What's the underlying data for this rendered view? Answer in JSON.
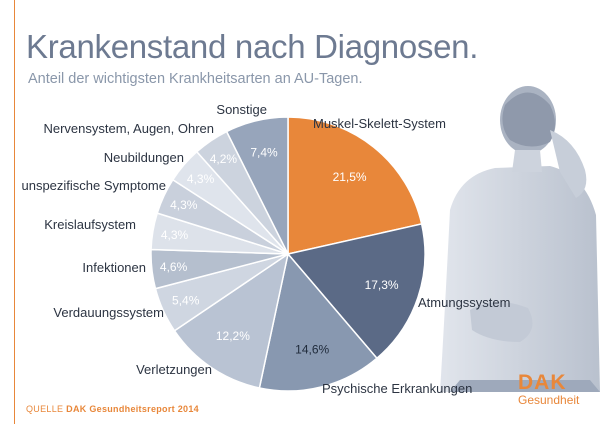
{
  "header": {
    "title": "Krankenstand nach Diagnosen.",
    "subtitle": "Anteil der wichtigsten Krankheitsarten an AU-Tagen."
  },
  "footer": {
    "source_label": "QUELLE",
    "source_name": "DAK Gesundheitsreport 2014"
  },
  "logo": {
    "word": "DAK",
    "sub": "Gesundheit"
  },
  "colors": {
    "accent": "#e8873a",
    "title": "#6d7a91"
  },
  "chart_data": {
    "type": "pie",
    "title": "Krankenstand nach Diagnosen.",
    "subtitle": "Anteil der wichtigsten Krankheitsarten an AU-Tagen.",
    "slices": [
      {
        "label": "Muskel-Skelett-System",
        "value": 21.5,
        "display": "21,5%",
        "color": "#e8873a"
      },
      {
        "label": "Atmungssystem",
        "value": 17.3,
        "display": "17,3%",
        "color": "#5b6a86"
      },
      {
        "label": "Psychische Erkrankungen",
        "value": 14.6,
        "display": "14,6%",
        "color": "#8898b0"
      },
      {
        "label": "Verletzungen",
        "value": 12.2,
        "display": "12,2%",
        "color": "#b9c3d3"
      },
      {
        "label": "Verdauungssystem",
        "value": 5.4,
        "display": "5,4%",
        "color": "#cfd6e1"
      },
      {
        "label": "Infektionen",
        "value": 4.6,
        "display": "4,6%",
        "color": "#b5bfce"
      },
      {
        "label": "Kreislaufsystem",
        "value": 4.3,
        "display": "4,3%",
        "color": "#dde2ea"
      },
      {
        "label": "unspezifische Symptome",
        "value": 4.3,
        "display": "4,3%",
        "color": "#c9d0dc"
      },
      {
        "label": "Neubildungen",
        "value": 4.3,
        "display": "4,3%",
        "color": "#dfe4ec"
      },
      {
        "label": "Nervensystem, Augen, Ohren",
        "value": 4.2,
        "display": "4,2%",
        "color": "#ccd3de"
      },
      {
        "label": "Sonstige",
        "value": 7.4,
        "display": "7,4%",
        "color": "#97a5bb"
      }
    ]
  }
}
